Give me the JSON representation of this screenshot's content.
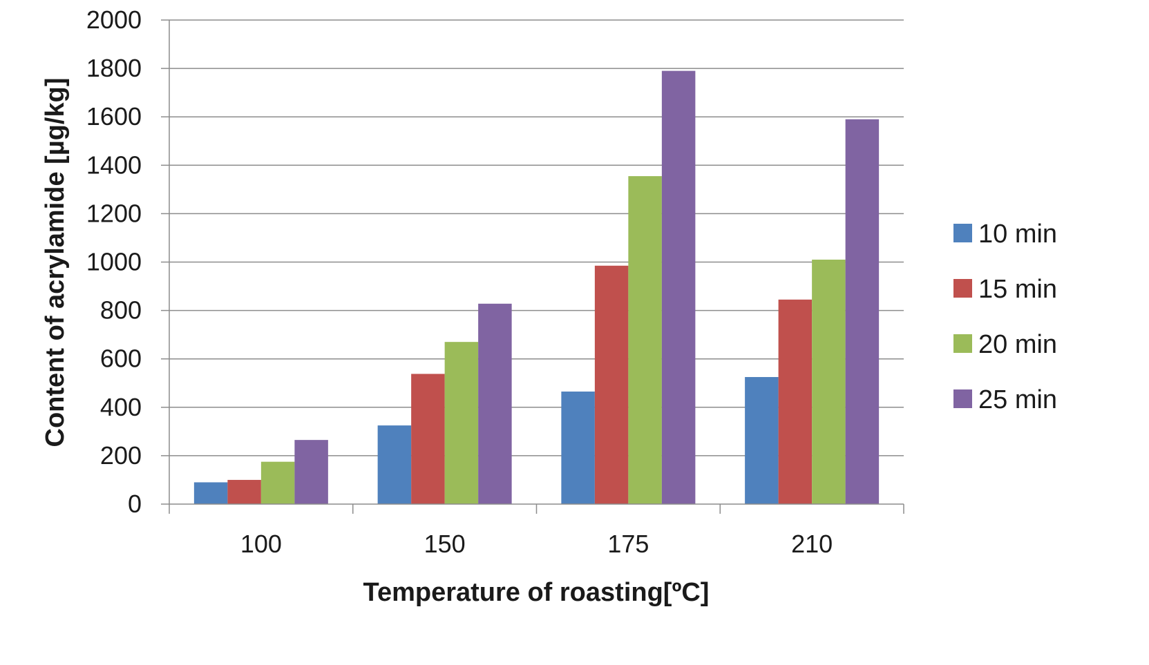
{
  "chart_data": {
    "type": "bar",
    "title": "",
    "xlabel": "Temperature of  roasting[ºC]",
    "ylabel": "Content of acrylamide [µg/kg]",
    "categories": [
      "100",
      "150",
      "175",
      "210"
    ],
    "ylim": [
      0,
      2000
    ],
    "yticks": [
      "0",
      "200",
      "400",
      "600",
      "800",
      "1000",
      "1200",
      "1400",
      "1600",
      "1800",
      "2000"
    ],
    "grid": true,
    "legend_position": "right",
    "series": [
      {
        "name": "10 min",
        "color": "#4f81bd",
        "values": [
          90,
          325,
          465,
          525
        ]
      },
      {
        "name": "15 min",
        "color": "#c0504d",
        "values": [
          100,
          538,
          985,
          845
        ]
      },
      {
        "name": "20 min",
        "color": "#9bbb59",
        "values": [
          175,
          670,
          1355,
          1010
        ]
      },
      {
        "name": "25 min",
        "color": "#8064a2",
        "values": [
          265,
          828,
          1790,
          1590
        ]
      }
    ]
  }
}
